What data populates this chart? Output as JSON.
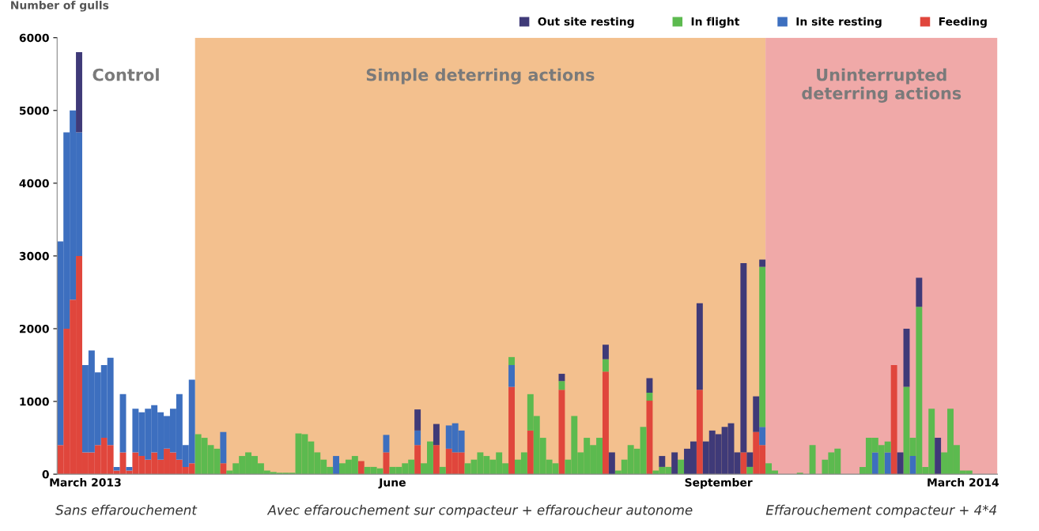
{
  "chart_data": {
    "type": "bar",
    "stacked": true,
    "ylabel": "Number of gulls",
    "ylim": [
      0,
      6000
    ],
    "yticks": [
      0,
      1000,
      2000,
      3000,
      4000,
      5000,
      6000
    ],
    "grid": false,
    "legend": "top right",
    "categories": [
      null,
      null,
      null,
      null,
      "March 2013",
      null,
      null,
      null,
      null,
      null,
      null,
      null,
      null,
      null,
      null,
      null,
      null,
      null,
      null,
      null,
      null,
      null,
      null,
      null,
      null,
      null,
      null,
      null,
      null,
      null,
      null,
      null,
      null,
      null,
      null,
      null,
      null,
      null,
      null,
      null,
      null,
      null,
      null,
      null,
      null,
      null,
      null,
      null,
      null,
      null,
      null,
      null,
      null,
      "June",
      null,
      null,
      null,
      null,
      null,
      null,
      null,
      null,
      null,
      null,
      null,
      null,
      null,
      null,
      null,
      null,
      null,
      null,
      null,
      null,
      null,
      null,
      null,
      null,
      null,
      null,
      null,
      null,
      null,
      null,
      null,
      null,
      null,
      null,
      null,
      null,
      null,
      null,
      null,
      null,
      null,
      null,
      null,
      null,
      null,
      null,
      null,
      null,
      null,
      null,
      null,
      "September",
      null,
      null,
      null,
      null,
      null,
      null,
      null,
      null,
      null,
      null,
      null,
      null,
      null,
      null,
      null,
      null,
      null,
      null,
      null,
      null,
      null,
      null,
      null,
      null,
      null,
      null,
      null,
      null,
      null,
      null,
      null,
      null,
      null,
      null,
      null,
      null,
      null,
      null,
      "March 2014",
      null,
      null,
      null,
      null,
      null
    ],
    "series": [
      {
        "name": "Feeding",
        "color": "#e0463c",
        "values": [
          400,
          2000,
          2400,
          3000,
          300,
          300,
          400,
          500,
          400,
          50,
          300,
          50,
          300,
          250,
          200,
          300,
          200,
          350,
          300,
          200,
          100,
          150,
          0,
          0,
          0,
          0,
          150,
          0,
          0,
          0,
          0,
          0,
          0,
          0,
          0,
          0,
          0,
          0,
          0,
          0,
          0,
          0,
          0,
          0,
          0,
          0,
          0,
          0,
          180,
          0,
          0,
          0,
          300,
          0,
          0,
          0,
          0,
          400,
          0,
          0,
          400,
          0,
          350,
          300,
          300,
          0,
          0,
          0,
          0,
          0,
          0,
          0,
          1200,
          0,
          0,
          600,
          0,
          0,
          0,
          0,
          1160,
          0,
          0,
          0,
          0,
          0,
          0,
          1410,
          0,
          0,
          0,
          0,
          0,
          0,
          1010,
          0,
          0,
          0,
          0,
          0,
          0,
          0,
          1160,
          0,
          0,
          0,
          0,
          0,
          0,
          300,
          0,
          580,
          400,
          0,
          0,
          0,
          0,
          0,
          0,
          0,
          0,
          0,
          0,
          0,
          0,
          0,
          0,
          0,
          0,
          0,
          0,
          0,
          0,
          1500,
          0,
          0,
          0,
          0,
          0,
          0,
          0,
          0,
          0,
          0,
          0,
          0,
          0,
          0,
          0,
          0
        ]
      },
      {
        "name": "In site resting",
        "color": "#3d6fbf",
        "values": [
          2800,
          2700,
          2600,
          1700,
          1200,
          1400,
          1000,
          1000,
          1200,
          50,
          800,
          50,
          600,
          600,
          700,
          650,
          650,
          450,
          600,
          900,
          300,
          1150,
          0,
          0,
          0,
          0,
          430,
          0,
          0,
          0,
          0,
          0,
          0,
          0,
          0,
          0,
          0,
          0,
          0,
          0,
          0,
          0,
          0,
          0,
          250,
          0,
          0,
          0,
          0,
          0,
          0,
          0,
          240,
          0,
          0,
          0,
          0,
          200,
          0,
          0,
          0,
          0,
          320,
          400,
          300,
          0,
          0,
          0,
          0,
          0,
          0,
          0,
          300,
          0,
          0,
          0,
          0,
          0,
          0,
          0,
          0,
          0,
          0,
          0,
          0,
          0,
          0,
          0,
          0,
          0,
          0,
          0,
          0,
          0,
          0,
          0,
          0,
          0,
          0,
          0,
          0,
          0,
          0,
          0,
          0,
          0,
          0,
          0,
          0,
          0,
          0,
          0,
          250,
          0,
          0,
          0,
          0,
          0,
          0,
          0,
          0,
          0,
          0,
          0,
          0,
          0,
          0,
          0,
          0,
          0,
          300,
          0,
          300,
          0,
          0,
          0,
          250,
          0,
          0,
          0,
          0,
          0,
          0,
          0,
          0,
          0,
          0,
          0,
          0,
          0
        ]
      },
      {
        "name": "In flight",
        "color": "#5cba4f",
        "values": [
          0,
          0,
          0,
          0,
          0,
          0,
          0,
          0,
          0,
          0,
          0,
          0,
          0,
          0,
          0,
          0,
          0,
          0,
          0,
          0,
          0,
          0,
          550,
          500,
          400,
          350,
          0,
          50,
          150,
          250,
          300,
          250,
          150,
          50,
          30,
          20,
          20,
          20,
          560,
          550,
          450,
          300,
          200,
          100,
          0,
          150,
          200,
          250,
          0,
          100,
          100,
          80,
          0,
          100,
          100,
          150,
          200,
          0,
          150,
          450,
          0,
          100,
          0,
          0,
          0,
          150,
          200,
          300,
          250,
          200,
          300,
          150,
          110,
          200,
          300,
          500,
          800,
          500,
          200,
          150,
          120,
          200,
          800,
          300,
          500,
          400,
          500,
          170,
          0,
          50,
          200,
          400,
          350,
          650,
          110,
          50,
          100,
          100,
          0,
          200,
          0,
          0,
          0,
          0,
          0,
          0,
          0,
          0,
          0,
          0,
          100,
          0,
          2200,
          150,
          50,
          0,
          0,
          0,
          20,
          0,
          400,
          0,
          200,
          300,
          350,
          0,
          0,
          0,
          100,
          500,
          200,
          400,
          150,
          0,
          0,
          1200,
          250,
          2300,
          100,
          900,
          0,
          300,
          900,
          400,
          50,
          50,
          0,
          0,
          0,
          0
        ]
      },
      {
        "name": "Out site resting",
        "color": "#3f3a78",
        "values": [
          0,
          0,
          0,
          1100,
          0,
          0,
          0,
          0,
          0,
          0,
          0,
          0,
          0,
          0,
          0,
          0,
          0,
          0,
          0,
          0,
          0,
          0,
          0,
          0,
          0,
          0,
          0,
          0,
          0,
          0,
          0,
          0,
          0,
          0,
          0,
          0,
          0,
          0,
          0,
          0,
          0,
          0,
          0,
          0,
          0,
          0,
          0,
          0,
          0,
          0,
          0,
          0,
          0,
          0,
          0,
          0,
          0,
          290,
          0,
          0,
          290,
          0,
          0,
          0,
          0,
          0,
          0,
          0,
          0,
          0,
          0,
          0,
          0,
          0,
          0,
          0,
          0,
          0,
          0,
          0,
          100,
          0,
          0,
          0,
          0,
          0,
          0,
          200,
          300,
          0,
          0,
          0,
          0,
          0,
          200,
          0,
          150,
          0,
          300,
          0,
          350,
          450,
          1190,
          450,
          600,
          550,
          650,
          700,
          300,
          2600,
          200,
          490,
          100,
          0,
          0,
          0,
          0,
          0,
          0,
          0,
          0,
          0,
          0,
          0,
          0,
          0,
          0,
          0,
          0,
          0,
          0,
          0,
          0,
          0,
          300,
          800,
          0,
          400,
          0,
          0,
          500,
          0,
          0,
          0,
          0,
          0,
          0,
          0,
          0,
          0
        ]
      }
    ],
    "annotations": [
      "Control",
      "Simple deterring actions",
      "Uninterrupted\ndeterring actions",
      "Sans effarouchement",
      "Avec effarouchement sur compacteur + effaroucheur autonome",
      "Effarouchement compacteur + 4*4"
    ]
  }
}
